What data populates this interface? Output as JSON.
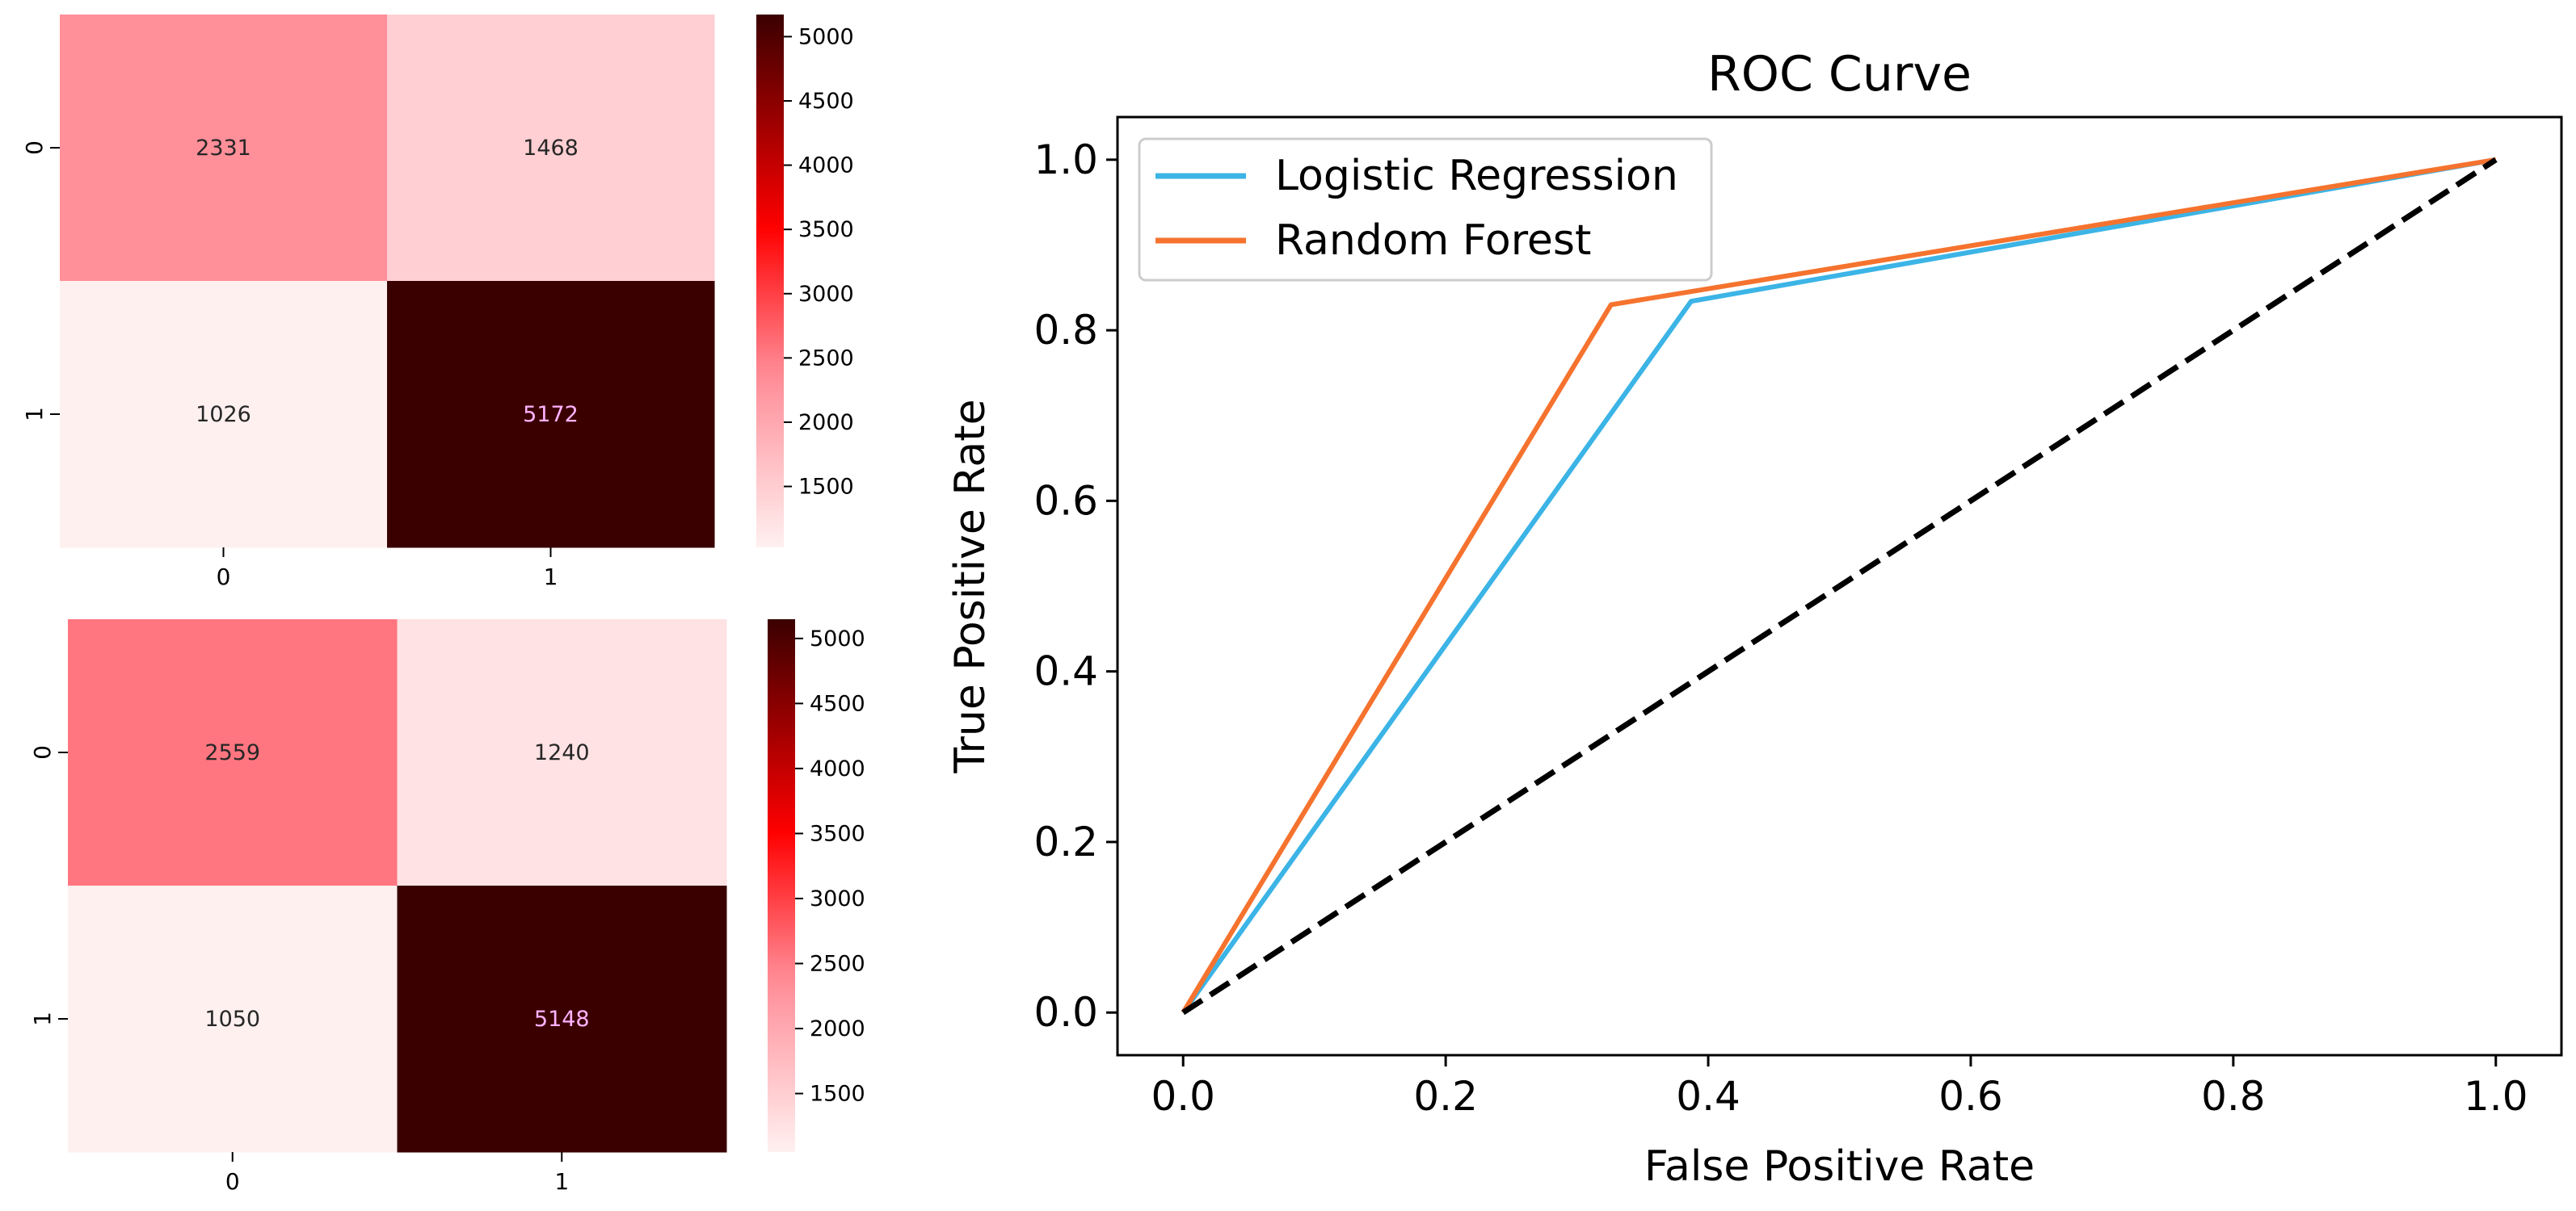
{
  "chart_data": [
    {
      "type": "heatmap",
      "rows": [
        "0",
        "1"
      ],
      "cols": [
        "0",
        "1"
      ],
      "values": [
        [
          2331,
          1468
        ],
        [
          1026,
          5172
        ]
      ],
      "colorbar_ticks": [
        1500,
        2000,
        2500,
        3000,
        3500,
        4000,
        4500,
        5000
      ],
      "colorbar_range": [
        1026,
        5172
      ]
    },
    {
      "type": "heatmap",
      "rows": [
        "0",
        "1"
      ],
      "cols": [
        "0",
        "1"
      ],
      "values": [
        [
          2559,
          1240
        ],
        [
          1050,
          5148
        ]
      ],
      "colorbar_ticks": [
        1500,
        2000,
        2500,
        3000,
        3500,
        4000,
        4500,
        5000
      ],
      "colorbar_range": [
        1050,
        5148
      ]
    },
    {
      "type": "line",
      "title": "ROC Curve",
      "xlabel": "False Positive Rate",
      "ylabel": "True Positive Rate",
      "xlim": [
        -0.05,
        1.05
      ],
      "ylim": [
        -0.05,
        1.05
      ],
      "xticks": [
        0.0,
        0.2,
        0.4,
        0.6,
        0.8,
        1.0
      ],
      "yticks": [
        0.0,
        0.2,
        0.4,
        0.6,
        0.8,
        1.0
      ],
      "legend": "upper-left",
      "grid": false,
      "series": [
        {
          "name": "Logistic Regression",
          "color": "#3cb4e6",
          "x": [
            0.0,
            0.387,
            1.0
          ],
          "y": [
            0.0,
            0.834,
            1.0
          ]
        },
        {
          "name": "Random Forest",
          "color": "#f5732e",
          "x": [
            0.0,
            0.326,
            1.0
          ],
          "y": [
            0.0,
            0.83,
            1.0
          ]
        },
        {
          "name": "",
          "color": "#000000",
          "dashed": true,
          "x": [
            0.0,
            1.0
          ],
          "y": [
            0.0,
            1.0
          ]
        }
      ]
    }
  ],
  "colors": {
    "heat_low": "#fff0f0",
    "heat_mid_low": "#ff8a95",
    "heat_mid": "#ff0000",
    "heat_high": "#3a0000",
    "text_dark": "#262626",
    "text_light": "#ffb3ff"
  }
}
